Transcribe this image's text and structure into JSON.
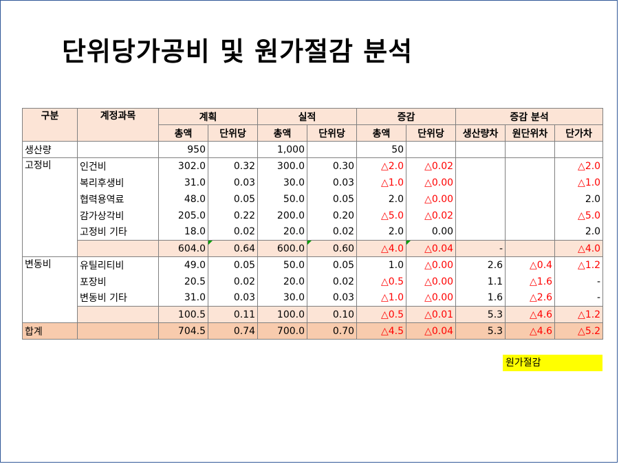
{
  "title": "단위당가공비 및 원가절감 분석",
  "headers": {
    "gubun": "구분",
    "account": "계정과목",
    "plan": "계획",
    "actual": "실적",
    "change": "증감",
    "analysis": "증감 분석",
    "total_amount": "총액",
    "unit": "단위당",
    "production_var": "생산량차",
    "unit_cost_var": "원단위차",
    "price_var": "단가차"
  },
  "production": {
    "label": "생산량",
    "plan_total": "950",
    "actual_total": "1,000",
    "change_total": "50"
  },
  "fixed": {
    "label": "고정비",
    "rows": [
      {
        "name": "인건비",
        "vals": [
          "302.0",
          "0.32",
          "300.0",
          "0.30",
          "△2.0",
          "△0.02",
          "",
          "",
          "△2.0"
        ]
      },
      {
        "name": "복리후생비",
        "vals": [
          "31.0",
          "0.03",
          "30.0",
          "0.03",
          "△1.0",
          "△0.00",
          "",
          "",
          "△1.0"
        ]
      },
      {
        "name": "협력용역료",
        "vals": [
          "48.0",
          "0.05",
          "50.0",
          "0.05",
          "2.0",
          "△0.00",
          "",
          "",
          "2.0"
        ]
      },
      {
        "name": "감가상각비",
        "vals": [
          "205.0",
          "0.22",
          "200.0",
          "0.20",
          "△5.0",
          "△0.02",
          "",
          "",
          "△5.0"
        ]
      },
      {
        "name": "고정비 기타",
        "vals": [
          "18.0",
          "0.02",
          "20.0",
          "0.02",
          "2.0",
          "0.00",
          "",
          "",
          "2.0"
        ]
      }
    ],
    "subtotal": [
      "604.0",
      "0.64",
      "600.0",
      "0.60",
      "△4.0",
      "△0.04",
      "-",
      "",
      "△4.0"
    ]
  },
  "variable": {
    "label": "변동비",
    "rows": [
      {
        "name": "유틸리티비",
        "vals": [
          "49.0",
          "0.05",
          "50.0",
          "0.05",
          "1.0",
          "△0.00",
          "2.6",
          "△0.4",
          "△1.2"
        ]
      },
      {
        "name": "포장비",
        "vals": [
          "20.5",
          "0.02",
          "20.0",
          "0.02",
          "△0.5",
          "△0.00",
          "1.1",
          "△1.6",
          "-"
        ]
      },
      {
        "name": "변동비 기타",
        "vals": [
          "31.0",
          "0.03",
          "30.0",
          "0.03",
          "△1.0",
          "△0.00",
          "1.6",
          "△2.6",
          "-"
        ]
      }
    ],
    "subtotal": [
      "100.5",
      "0.11",
      "100.0",
      "0.10",
      "△0.5",
      "△0.01",
      "5.3",
      "△4.6",
      "△1.2"
    ]
  },
  "total": {
    "label": "합계",
    "vals": [
      "704.5",
      "0.74",
      "700.0",
      "0.70",
      "△4.5",
      "△0.04",
      "5.3",
      "△4.6",
      "△5.2"
    ]
  },
  "note": "원가절감",
  "colors": {
    "header_bg": "#fce4d6",
    "total_bg": "#f8cbad",
    "negative": "#ff0000",
    "note_bg": "#ffff00",
    "border": "#2e5597"
  }
}
